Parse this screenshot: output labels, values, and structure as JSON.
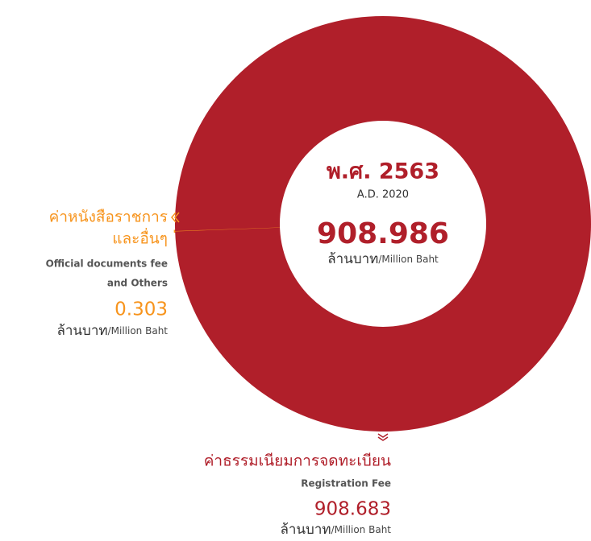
{
  "chart_data": {
    "type": "pie",
    "donut": true,
    "center": {
      "year_th": "พ.ศ. 2563",
      "year_en": "A.D. 2020",
      "total": 908.986
    },
    "unit_th": "ล้านบาท",
    "unit_en": "/Million Baht",
    "series": [
      {
        "name_th": [
          "ค่าธรรมเนียมการจดทะเบียน"
        ],
        "name_en": [
          "Registration Fee"
        ],
        "value": 908.683,
        "color": "#b01f2a"
      },
      {
        "name_th": [
          "ค่าหนังสือราชการ",
          "และอื่นๆ"
        ],
        "name_en": [
          "Official documents fee",
          "and Others"
        ],
        "value": 0.303,
        "color": "#f7941d"
      }
    ]
  }
}
